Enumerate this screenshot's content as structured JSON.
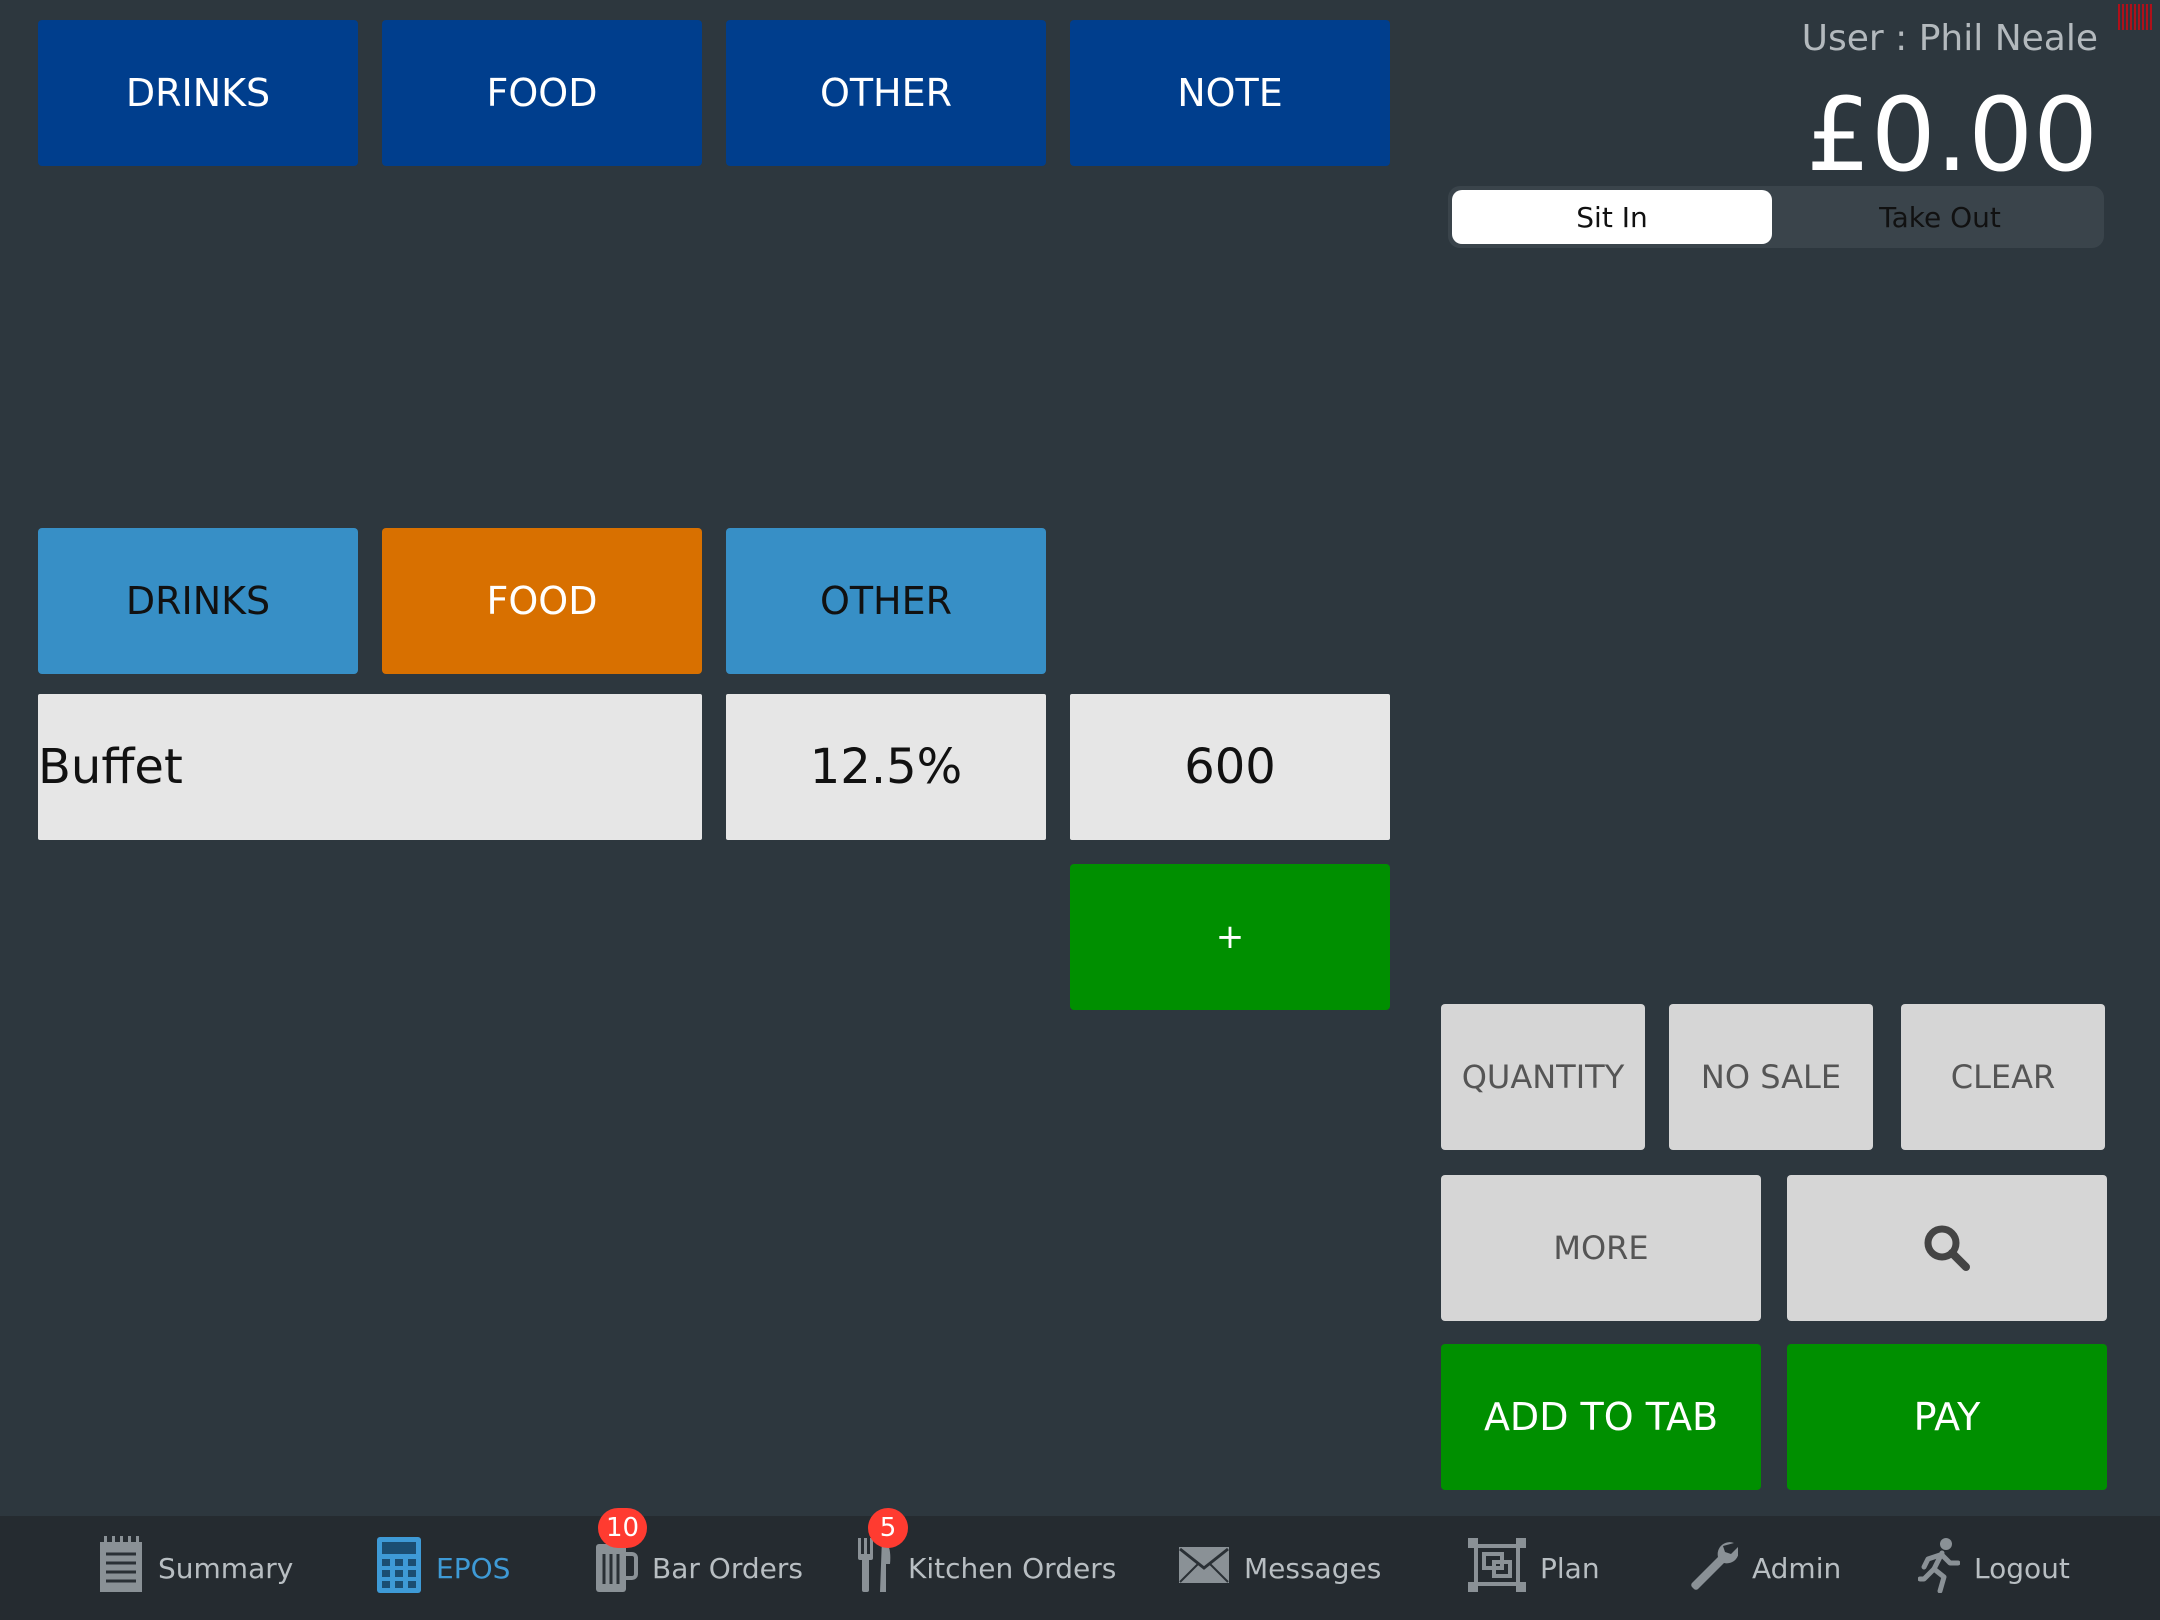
{
  "top_categories": [
    "DRINKS",
    "FOOD",
    "OTHER",
    "NOTE"
  ],
  "user": {
    "label": "User : Phil Neale"
  },
  "total": "£0.00",
  "order_type": {
    "options": [
      "Sit In",
      "Take Out"
    ],
    "selected": "Sit In"
  },
  "sub_categories": [
    {
      "label": "DRINKS",
      "selected": false
    },
    {
      "label": "FOOD",
      "selected": true
    },
    {
      "label": "OTHER",
      "selected": false
    }
  ],
  "item_row": {
    "name": "Buffet",
    "tax": "12.5%",
    "price": "600"
  },
  "add_button": "+",
  "actions": {
    "quantity": "QUANTITY",
    "no_sale": "NO SALE",
    "clear": "CLEAR",
    "more": "MORE",
    "add_to_tab": "ADD TO TAB",
    "pay": "PAY"
  },
  "tabbar": [
    {
      "label": "Summary",
      "icon": "notepad-icon"
    },
    {
      "label": "EPOS",
      "icon": "calculator-icon",
      "active": true
    },
    {
      "label": "Bar Orders",
      "icon": "beer-glass-icon",
      "badge": "10"
    },
    {
      "label": "Kitchen Orders",
      "icon": "fork-knife-icon",
      "badge": "5"
    },
    {
      "label": "Messages",
      "icon": "envelope-icon"
    },
    {
      "label": "Plan",
      "icon": "floor-plan-icon"
    },
    {
      "label": "Admin",
      "icon": "wrench-icon"
    },
    {
      "label": "Logout",
      "icon": "running-man-icon"
    }
  ],
  "colors": {
    "background": "#2d373e",
    "top_category": "#003e8d",
    "sub_category": "#378fc6",
    "selected_category": "#d87000",
    "green": "#008f00",
    "active_tab": "#3e9ad6",
    "badge": "#ff3b30"
  }
}
